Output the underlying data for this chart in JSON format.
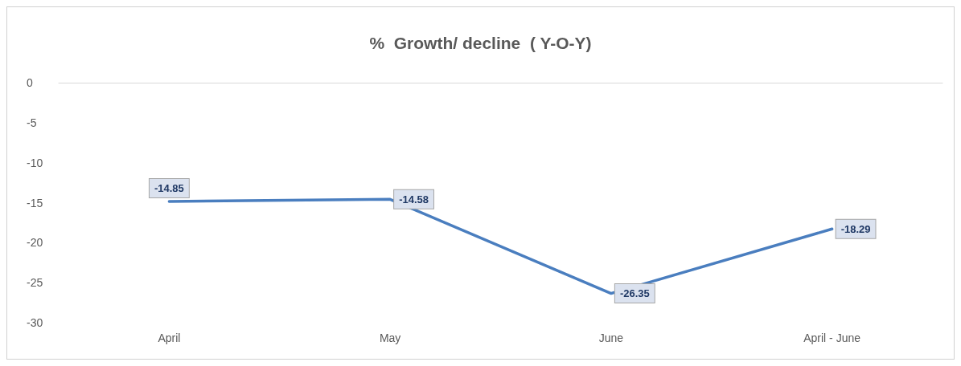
{
  "chart_data": {
    "type": "line",
    "title": "%  Growth/ decline  ( Y-O-Y)",
    "categories": [
      "April",
      "May",
      "June",
      "April - June"
    ],
    "series": [
      {
        "color": "#4a7ebf",
        "values": [
          -14.85,
          -14.58,
          -26.35,
          -18.29
        ]
      }
    ],
    "ylim": [
      -30,
      0
    ],
    "yticks": [
      0,
      -5,
      -10,
      -15,
      -20,
      -25,
      -30
    ],
    "grid": false,
    "marker": "none",
    "line_style": "solid",
    "data_labels": true
  }
}
